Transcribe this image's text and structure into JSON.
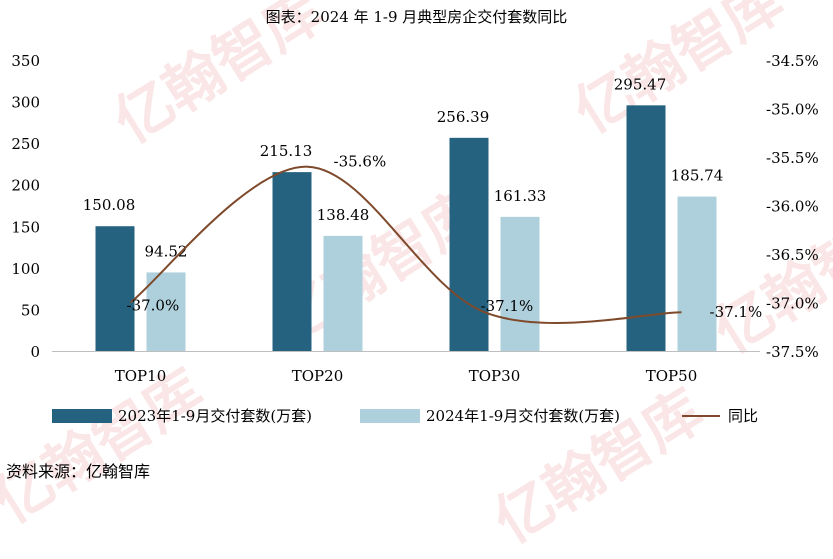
{
  "title": "图表：2024 年 1-9 月典型房企交付套数同比",
  "source": "资料来源：亿翰智库",
  "watermark": "亿翰智库",
  "colors": {
    "series1": "#24627f",
    "series2": "#aed0dc",
    "line": "#7f4a2c",
    "axis": "#bfbfbf"
  },
  "chart_data": {
    "type": "bar",
    "categories": [
      "TOP10",
      "TOP20",
      "TOP30",
      "TOP50"
    ],
    "series": [
      {
        "name": "2023年1-9月交付套数(万套)",
        "values": [
          150.08,
          215.13,
          256.39,
          295.47
        ],
        "labels": [
          "150.08",
          "215.13",
          "256.39",
          "295.47"
        ]
      },
      {
        "name": "2024年1-9月交付套数(万套)",
        "values": [
          94.52,
          138.48,
          161.33,
          185.74
        ],
        "labels": [
          "94.52",
          "138.48",
          "161.33",
          "185.74"
        ]
      }
    ],
    "line_series": {
      "name": "同比",
      "type": "line",
      "axis": "right",
      "values": [
        -37.0,
        -35.6,
        -37.1,
        -37.1
      ],
      "labels": [
        "-37.0%",
        "-35.6%",
        "-37.1%",
        "-37.1%"
      ]
    },
    "y_left": {
      "min": 0,
      "max": 350,
      "ticks": [
        "0",
        "50",
        "100",
        "150",
        "200",
        "250",
        "300",
        "350"
      ]
    },
    "y_right": {
      "min": -37.5,
      "max": -34.5,
      "ticks": [
        "-34.5%",
        "-35.0%",
        "-35.5%",
        "-36.0%",
        "-36.5%",
        "-37.0%",
        "-37.5%"
      ]
    },
    "legend": [
      "2023年1-9月交付套数(万套)",
      "2024年1-9月交付套数(万套)",
      "同比"
    ]
  }
}
